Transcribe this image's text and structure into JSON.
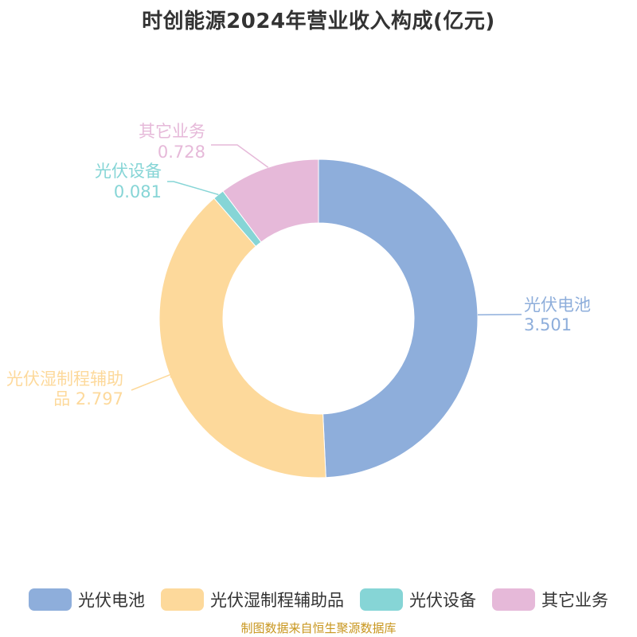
{
  "chart_data": {
    "type": "pie",
    "variant": "donut",
    "title": "时创能源2024年营业收入构成(亿元)",
    "categories": [
      "光伏电池",
      "光伏湿制程辅助品",
      "光伏设备",
      "其它业务"
    ],
    "values": [
      3.501,
      2.797,
      0.081,
      0.728
    ],
    "value_labels": [
      "3.501",
      "2.797",
      "0.081",
      "0.728"
    ],
    "colors": [
      "#8eaedb",
      "#fdd99b",
      "#86d5d6",
      "#e6b9d9"
    ],
    "legend_position": "bottom"
  },
  "source": "制图数据来自恒生聚源数据库"
}
